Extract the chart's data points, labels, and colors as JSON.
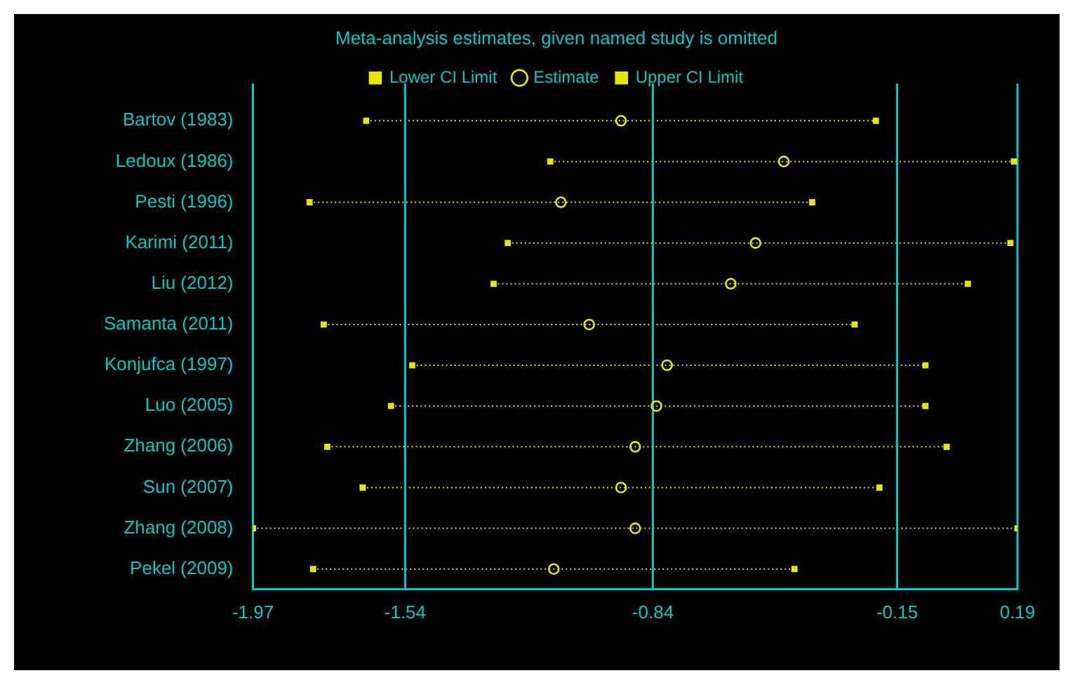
{
  "chart_data": {
    "type": "scatter",
    "orientation": "horizontal",
    "title": "Meta-analysis estimates, given named study is omitted",
    "categories": [
      "Bartov (1983)",
      "Ledoux (1986)",
      "Pesti (1996)",
      "Karimi (2011)",
      "Liu (2012)",
      "Samanta (2011)",
      "Konjufca (1997)",
      "Luo (2005)",
      "Zhang (2006)",
      "Sun (2007)",
      "Zhang (2008)",
      "Pekel (2009)"
    ],
    "series": [
      {
        "name": "Lower CI Limit",
        "color": "#e6e600",
        "marker": "square",
        "values": [
          -1.65,
          -1.13,
          -1.81,
          -1.25,
          -1.29,
          -1.77,
          -1.52,
          -1.58,
          -1.76,
          -1.66,
          -1.97,
          -1.8
        ]
      },
      {
        "name": "Estimate",
        "color": "#e6e600",
        "marker": "circle",
        "values": [
          -0.93,
          -0.47,
          -1.1,
          -0.55,
          -0.62,
          -1.02,
          -0.8,
          -0.83,
          -0.89,
          -0.93,
          -0.89,
          -1.12
        ]
      },
      {
        "name": "Upper CI Limit",
        "color": "#e6e600",
        "marker": "square",
        "values": [
          -0.21,
          0.18,
          -0.39,
          0.17,
          0.05,
          -0.27,
          -0.07,
          -0.07,
          -0.01,
          -0.2,
          0.19,
          -0.44
        ]
      }
    ],
    "xlim": [
      -1.97,
      0.19
    ],
    "xticks": [
      -1.97,
      -1.54,
      -0.84,
      -0.15,
      0.19
    ],
    "ref_lines": [
      {
        "axis": "x",
        "value": -1.54,
        "color": "#00c8c8"
      },
      {
        "axis": "x",
        "value": -0.84,
        "color": "#00c8c8"
      },
      {
        "axis": "x",
        "value": -0.15,
        "color": "#00c8c8"
      }
    ],
    "legend": "top",
    "line_style": "dotted"
  }
}
